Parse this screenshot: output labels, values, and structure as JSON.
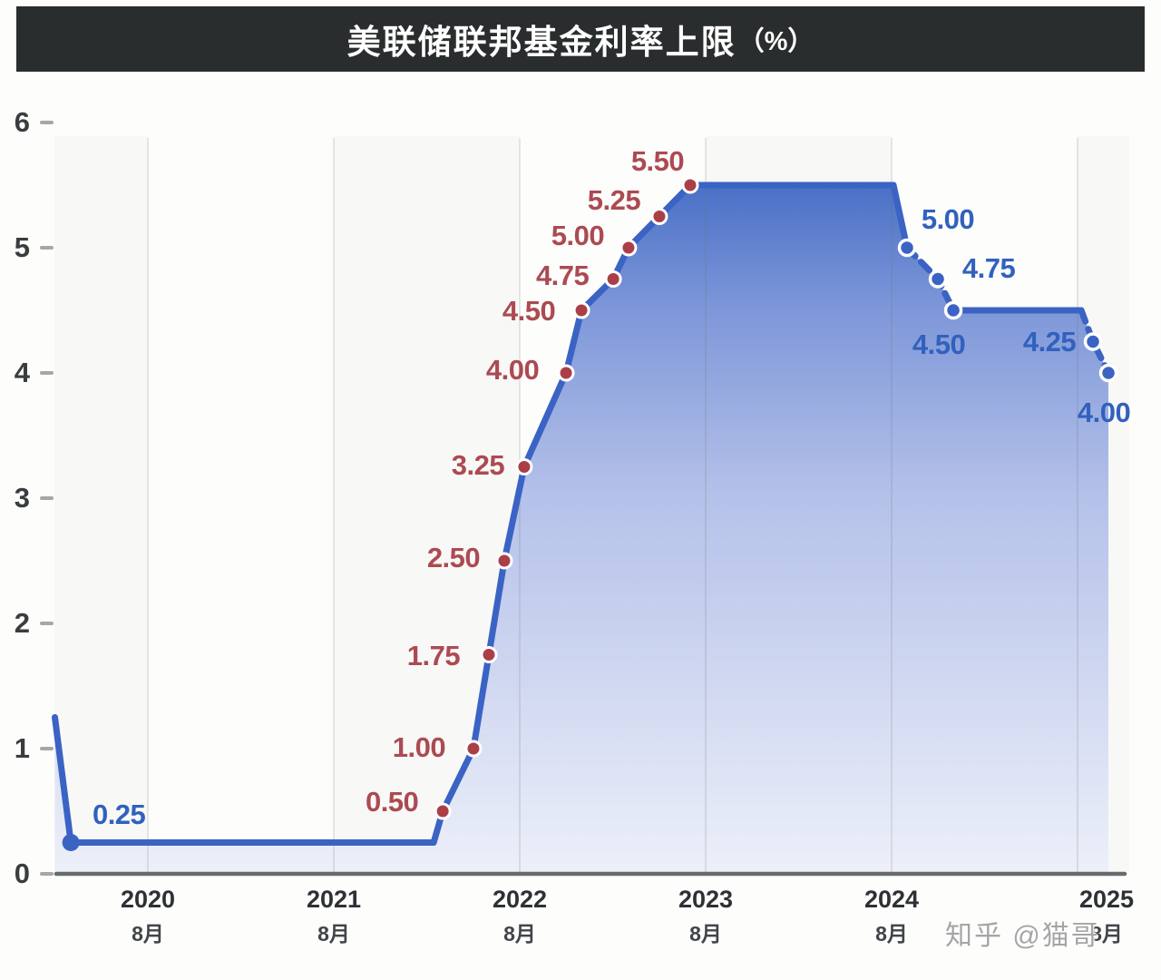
{
  "title": {
    "main": "美联储联邦基金利率上限",
    "unit": "（%）"
  },
  "watermark": "知乎 @猫哥",
  "colors": {
    "title_bg": "#2a2d2e",
    "line": "#3a63c4",
    "hike_dot": "#aa3f47",
    "hike_label": "#ac4a52",
    "cut_dot": "#3a63c4",
    "cut_label": "#3161be",
    "axis_line": "#666b6e",
    "fill_top": "#4a70c6",
    "fill_mid": "#b4c1e9",
    "fill_bottom": "#edf0f9"
  },
  "chart_data": {
    "type": "line",
    "title": "美联储联邦基金利率上限（%）",
    "unit": "%",
    "ylim": [
      0,
      6
    ],
    "grid": "vertical-year-lines",
    "legend": "none",
    "y_ticks": [
      "0",
      "1",
      "2",
      "3",
      "4",
      "5",
      "6"
    ],
    "x_ticks": [
      {
        "label": "2020",
        "sub": "8月",
        "t": 2020.583
      },
      {
        "label": "2021",
        "sub": "8月",
        "t": 2021.583
      },
      {
        "label": "2022",
        "sub": "8月",
        "t": 2022.583
      },
      {
        "label": "2023",
        "sub": "8月",
        "t": 2023.583
      },
      {
        "label": "2024",
        "sub": "8月",
        "t": 2024.583
      },
      {
        "label": "2025",
        "sub": "8月",
        "t": 2025.583
      }
    ],
    "series_name": "美联储联邦基金利率上限",
    "points": [
      {
        "t": 2020.169,
        "value": 0.25,
        "label": "0.25",
        "phase": "start"
      },
      {
        "t": 2022.169,
        "value": 0.5,
        "label": "0.50",
        "phase": "hike"
      },
      {
        "t": 2022.334,
        "value": 1.0,
        "label": "1.00",
        "phase": "hike"
      },
      {
        "t": 2022.417,
        "value": 1.75,
        "label": "1.75",
        "phase": "hike"
      },
      {
        "t": 2022.5,
        "value": 2.5,
        "label": "2.50",
        "phase": "hike"
      },
      {
        "t": 2022.607,
        "value": 3.25,
        "label": "3.25",
        "phase": "hike"
      },
      {
        "t": 2022.832,
        "value": 4.0,
        "label": "4.00",
        "phase": "hike"
      },
      {
        "t": 2022.915,
        "value": 4.5,
        "label": "4.50",
        "phase": "hike"
      },
      {
        "t": 2023.086,
        "value": 4.75,
        "label": "4.75",
        "phase": "hike"
      },
      {
        "t": 2023.168,
        "value": 5.0,
        "label": "5.00",
        "phase": "hike"
      },
      {
        "t": 2023.334,
        "value": 5.25,
        "label": "5.25",
        "phase": "hike"
      },
      {
        "t": 2023.5,
        "value": 5.5,
        "label": "5.50",
        "phase": "hike"
      },
      {
        "t": 2024.666,
        "value": 5.0,
        "label": "5.00",
        "phase": "cut"
      },
      {
        "t": 2024.832,
        "value": 4.75,
        "label": "4.75",
        "phase": "cut"
      },
      {
        "t": 2024.915,
        "value": 4.5,
        "label": "4.50",
        "phase": "cut"
      },
      {
        "t": 2025.666,
        "value": 4.25,
        "label": "4.25",
        "phase": "cut"
      },
      {
        "t": 2025.749,
        "value": 4.0,
        "label": "4.00",
        "phase": "cut"
      }
    ],
    "anchors": {
      "start_clip": {
        "t": 2020.083,
        "value": 1.25
      },
      "rise_corner": {
        "t": 2022.12,
        "value": 0.25
      },
      "plateau_end": {
        "t": 2024.593,
        "value": 5.5
      },
      "flat45_end": {
        "t": 2025.603,
        "value": 4.5
      }
    }
  }
}
